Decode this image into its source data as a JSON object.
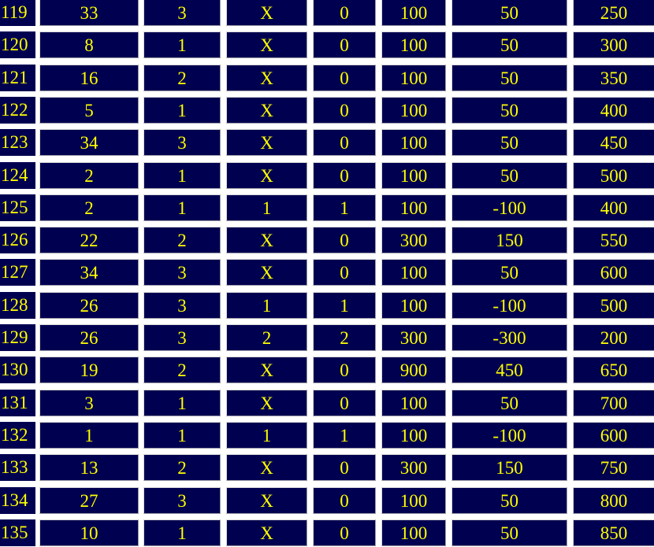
{
  "table": {
    "rows": [
      [
        "119",
        "33",
        "3",
        "X",
        "0",
        "100",
        "50",
        "250"
      ],
      [
        "120",
        "8",
        "1",
        "X",
        "0",
        "100",
        "50",
        "300"
      ],
      [
        "121",
        "16",
        "2",
        "X",
        "0",
        "100",
        "50",
        "350"
      ],
      [
        "122",
        "5",
        "1",
        "X",
        "0",
        "100",
        "50",
        "400"
      ],
      [
        "123",
        "34",
        "3",
        "X",
        "0",
        "100",
        "50",
        "450"
      ],
      [
        "124",
        "2",
        "1",
        "X",
        "0",
        "100",
        "50",
        "500"
      ],
      [
        "125",
        "2",
        "1",
        "1",
        "1",
        "100",
        "-100",
        "400"
      ],
      [
        "126",
        "22",
        "2",
        "X",
        "0",
        "300",
        "150",
        "550"
      ],
      [
        "127",
        "34",
        "3",
        "X",
        "0",
        "100",
        "50",
        "600"
      ],
      [
        "128",
        "26",
        "3",
        "1",
        "1",
        "100",
        "-100",
        "500"
      ],
      [
        "129",
        "26",
        "3",
        "2",
        "2",
        "300",
        "-300",
        "200"
      ],
      [
        "130",
        "19",
        "2",
        "X",
        "0",
        "900",
        "450",
        "650"
      ],
      [
        "131",
        "3",
        "1",
        "X",
        "0",
        "100",
        "50",
        "700"
      ],
      [
        "132",
        "1",
        "1",
        "1",
        "1",
        "100",
        "-100",
        "600"
      ],
      [
        "133",
        "13",
        "2",
        "X",
        "0",
        "300",
        "150",
        "750"
      ],
      [
        "134",
        "27",
        "3",
        "X",
        "0",
        "100",
        "50",
        "800"
      ],
      [
        "135",
        "10",
        "1",
        "X",
        "0",
        "100",
        "50",
        "850"
      ]
    ]
  },
  "colors": {
    "cell_bg": "#000050",
    "text": "#ffff00",
    "background": "#ffffff"
  }
}
